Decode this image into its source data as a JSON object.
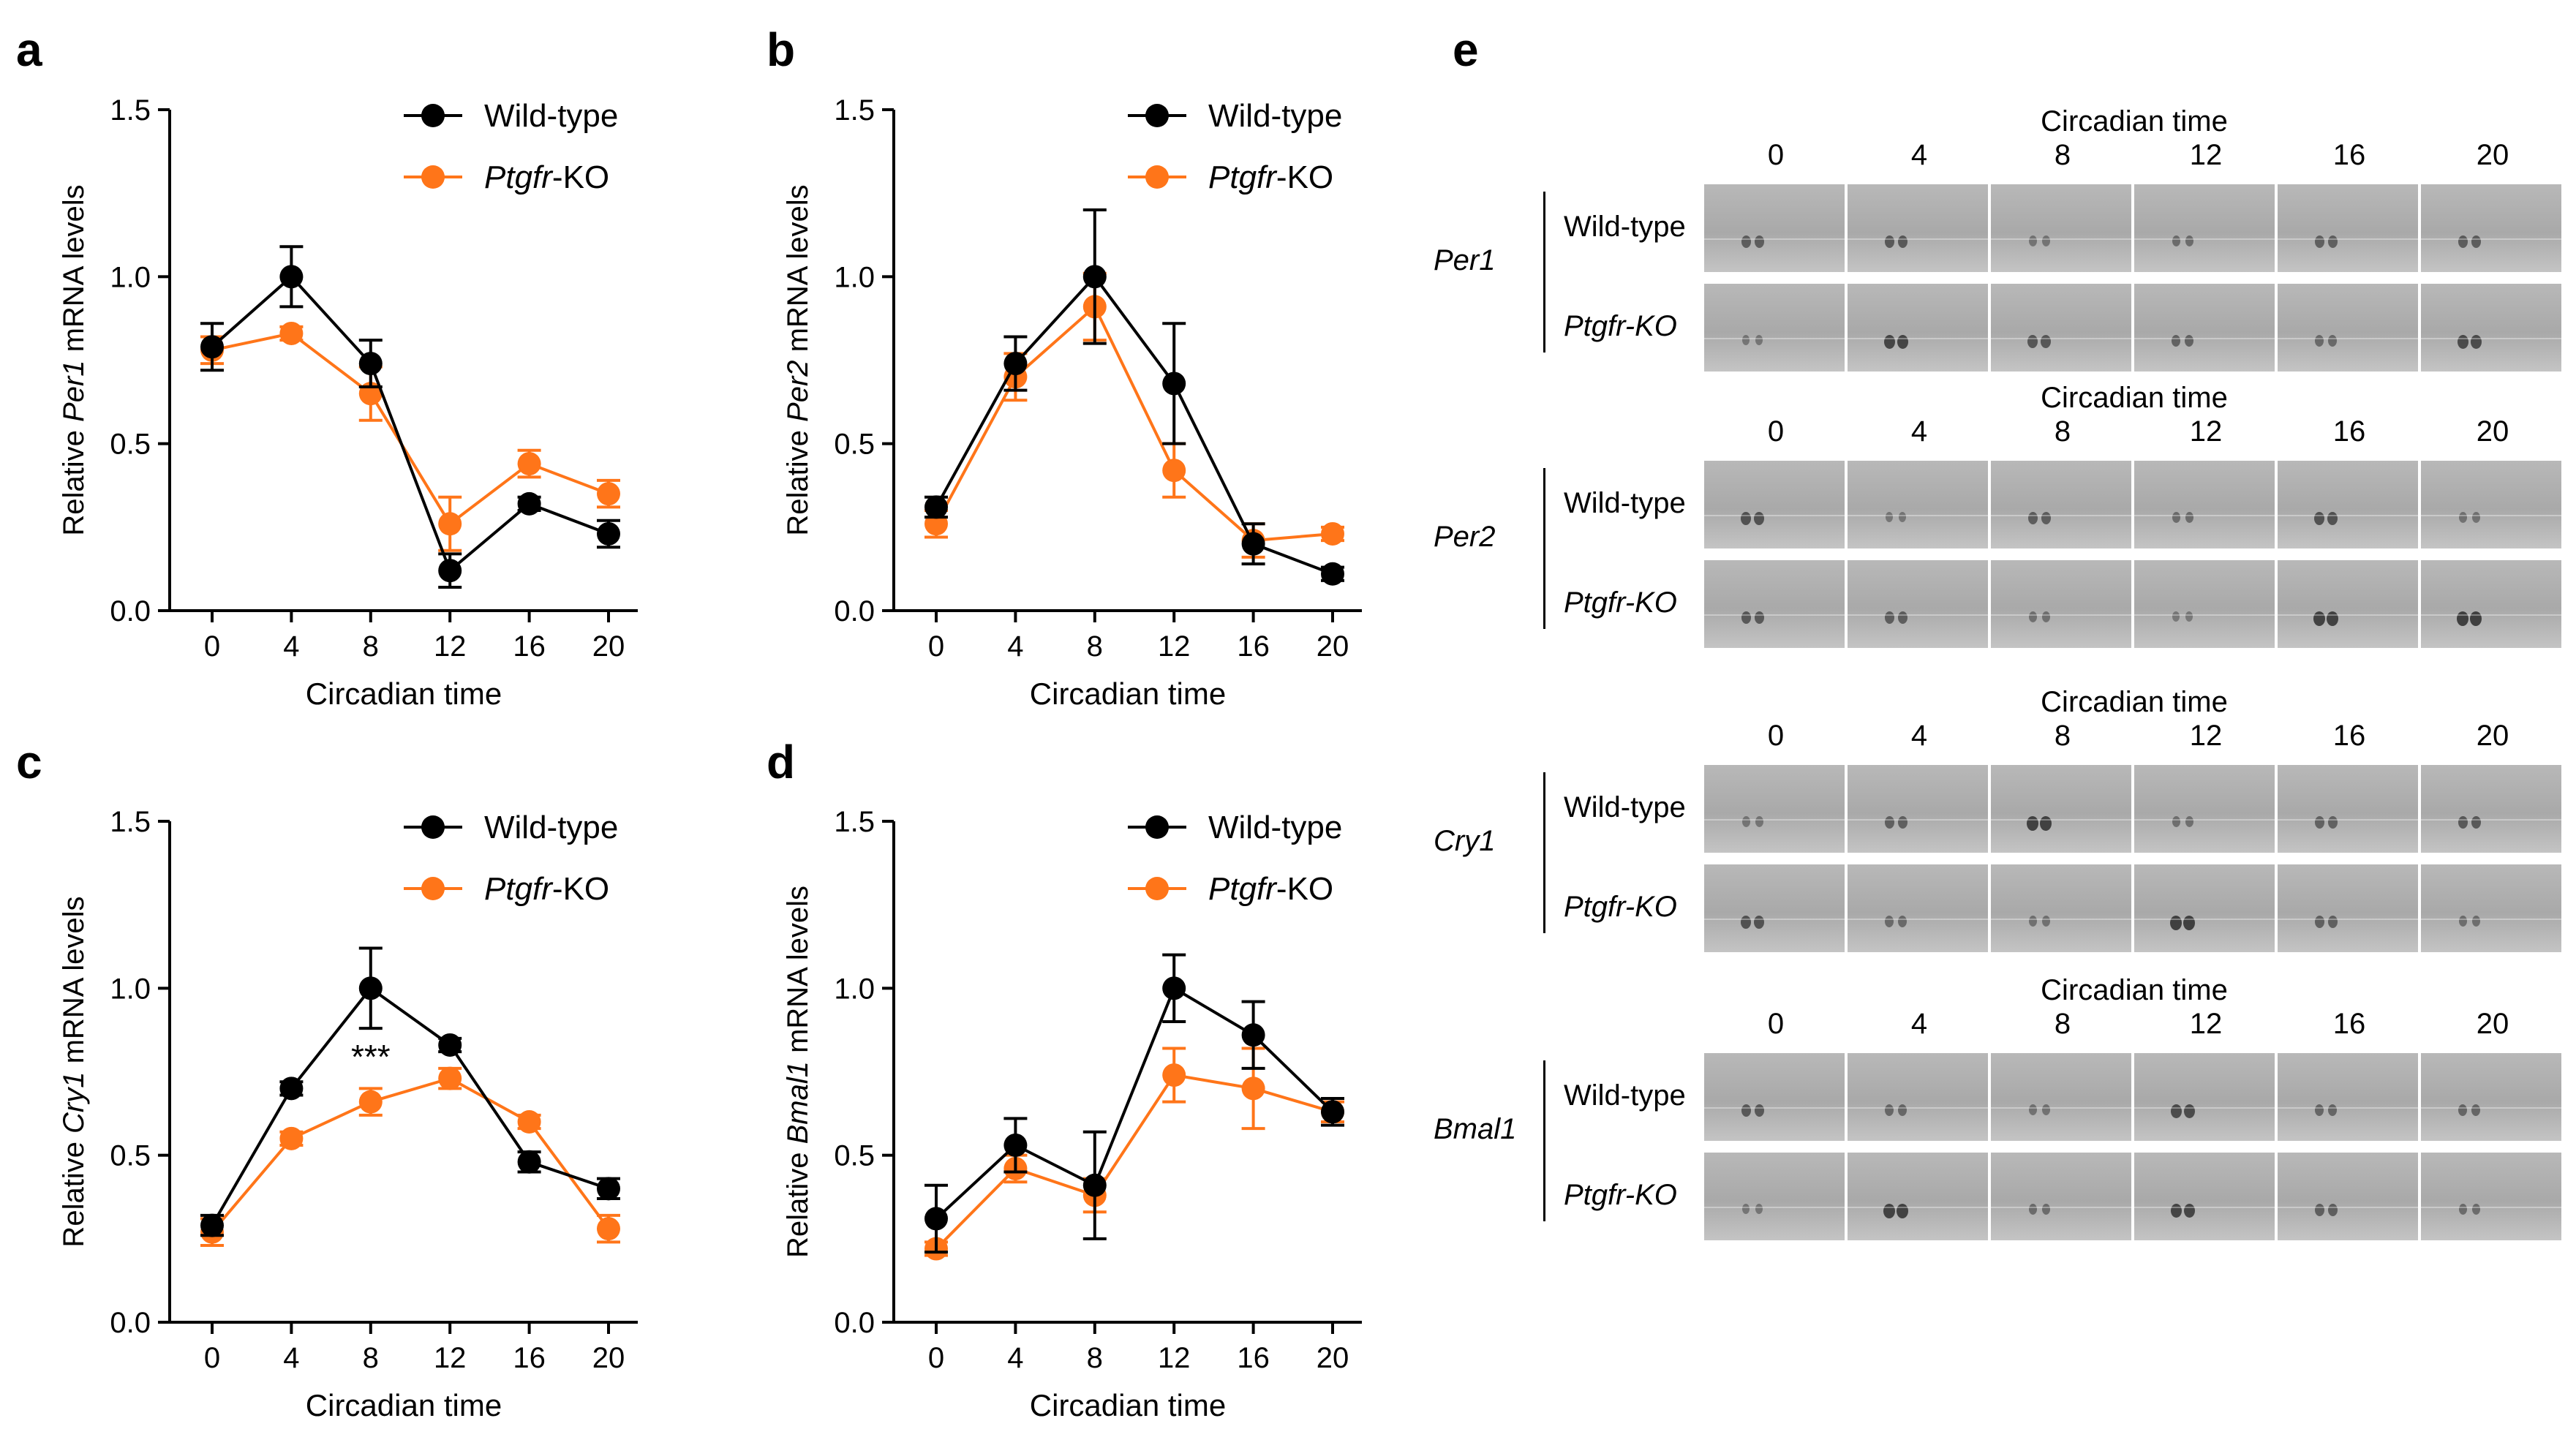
{
  "panels": {
    "a": "a",
    "b": "b",
    "c": "c",
    "d": "d",
    "e": "e"
  },
  "colors": {
    "wild_type": "#000000",
    "ko": "#FF7519"
  },
  "chart_data": [
    {
      "id": "a",
      "type": "line",
      "xlabel": "Circadian time",
      "ylabel_parts": [
        "Relative ",
        "Per1",
        " mRNA levels"
      ],
      "x": [
        0,
        4,
        8,
        12,
        16,
        20
      ],
      "xticks": [
        "0",
        "4",
        "8",
        "12",
        "16",
        "20"
      ],
      "yticks": [
        "0.0",
        "0.5",
        "1.0",
        "1.5"
      ],
      "ylim": [
        0,
        1.5
      ],
      "legend": [
        {
          "label_parts": [
            "Wild-type"
          ]
        },
        {
          "label_parts": [
            "Ptgfr",
            "-KO"
          ]
        }
      ],
      "series": [
        {
          "values": [
            0.79,
            1.0,
            0.74,
            0.12,
            0.32,
            0.23
          ],
          "err": [
            0.07,
            0.09,
            0.07,
            0.05,
            0.02,
            0.04
          ]
        },
        {
          "values": [
            0.78,
            0.83,
            0.65,
            0.26,
            0.44,
            0.35
          ],
          "err": [
            0.04,
            0.02,
            0.08,
            0.08,
            0.04,
            0.04
          ]
        }
      ],
      "annotations": []
    },
    {
      "id": "b",
      "type": "line",
      "xlabel": "Circadian time",
      "ylabel_parts": [
        "Relative ",
        "Per2",
        " mRNA levels"
      ],
      "x": [
        0,
        4,
        8,
        12,
        16,
        20
      ],
      "xticks": [
        "0",
        "4",
        "8",
        "12",
        "16",
        "20"
      ],
      "yticks": [
        "0.0",
        "0.5",
        "1.0",
        "1.5"
      ],
      "ylim": [
        0,
        1.5
      ],
      "legend": [
        {
          "label_parts": [
            "Wild-type"
          ]
        },
        {
          "label_parts": [
            "Ptgfr",
            "-KO"
          ]
        }
      ],
      "series": [
        {
          "values": [
            0.31,
            0.74,
            1.0,
            0.68,
            0.2,
            0.11
          ],
          "err": [
            0.03,
            0.08,
            0.2,
            0.18,
            0.06,
            0.02
          ]
        },
        {
          "values": [
            0.26,
            0.7,
            0.91,
            0.42,
            0.21,
            0.23
          ],
          "err": [
            0.04,
            0.07,
            0.1,
            0.08,
            0.05,
            0.02
          ]
        }
      ],
      "annotations": []
    },
    {
      "id": "c",
      "type": "line",
      "xlabel": "Circadian time",
      "ylabel_parts": [
        "Relative ",
        "Cry1",
        " mRNA levels"
      ],
      "x": [
        0,
        4,
        8,
        12,
        16,
        20
      ],
      "xticks": [
        "0",
        "4",
        "8",
        "12",
        "16",
        "20"
      ],
      "yticks": [
        "0.0",
        "0.5",
        "1.0",
        "1.5"
      ],
      "ylim": [
        0,
        1.5
      ],
      "legend": [
        {
          "label_parts": [
            "Wild-type"
          ]
        },
        {
          "label_parts": [
            "Ptgfr",
            "-KO"
          ]
        }
      ],
      "series": [
        {
          "values": [
            0.29,
            0.7,
            1.0,
            0.83,
            0.48,
            0.4
          ],
          "err": [
            0.03,
            0.02,
            0.12,
            0.02,
            0.03,
            0.03
          ]
        },
        {
          "values": [
            0.27,
            0.55,
            0.66,
            0.73,
            0.6,
            0.28
          ],
          "err": [
            0.04,
            0.02,
            0.04,
            0.03,
            0.02,
            0.04
          ]
        }
      ],
      "annotations": [
        {
          "text": "***",
          "x": 8,
          "y": 0.76
        }
      ]
    },
    {
      "id": "d",
      "type": "line",
      "xlabel": "Circadian time",
      "ylabel_parts": [
        "Relative ",
        "Bmal1",
        " mRNA levels"
      ],
      "x": [
        0,
        4,
        8,
        12,
        16,
        20
      ],
      "xticks": [
        "0",
        "4",
        "8",
        "12",
        "16",
        "20"
      ],
      "yticks": [
        "0.0",
        "0.5",
        "1.0",
        "1.5"
      ],
      "ylim": [
        0,
        1.5
      ],
      "legend": [
        {
          "label_parts": [
            "Wild-type"
          ]
        },
        {
          "label_parts": [
            "Ptgfr",
            "-KO"
          ]
        }
      ],
      "series": [
        {
          "values": [
            0.31,
            0.53,
            0.41,
            1.0,
            0.86,
            0.63
          ],
          "err": [
            0.1,
            0.08,
            0.16,
            0.1,
            0.1,
            0.04
          ]
        },
        {
          "values": [
            0.22,
            0.46,
            0.38,
            0.74,
            0.7,
            0.63
          ],
          "err": [
            0.02,
            0.04,
            0.05,
            0.08,
            0.12,
            0.03
          ]
        }
      ],
      "annotations": []
    }
  ],
  "ish": {
    "header": "Circadian time",
    "timepoints": [
      "0",
      "4",
      "8",
      "12",
      "16",
      "20"
    ],
    "rows": [
      "Wild-type",
      "Ptgfr-KO"
    ],
    "genes": [
      "Per1",
      "Per2",
      "Cry1",
      "Bmal1"
    ]
  }
}
